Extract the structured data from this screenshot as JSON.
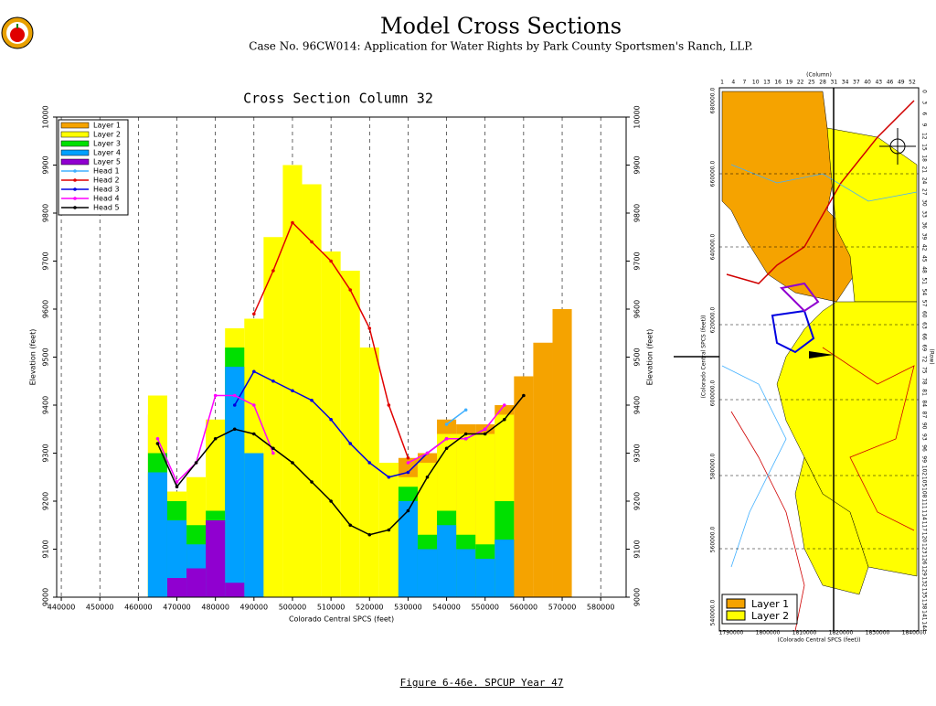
{
  "header": {
    "title": "Model Cross Sections",
    "subtitle": "Case No. 96CW014: Application for Water Rights by Park County Sportsmen's Ranch, LLP."
  },
  "chart_data": {
    "type": "cross_section",
    "title": "Cross Section Column 32",
    "x_label": "Colorado Central SPCS (feet)",
    "y_label": "Elevation (feet)",
    "x": [
      450000,
      455000,
      460000,
      465000,
      470000,
      475000,
      480000,
      485000,
      490000,
      495000,
      500000,
      505000,
      510000,
      515000,
      520000,
      525000,
      530000,
      535000,
      540000,
      545000,
      550000,
      555000,
      560000,
      565000,
      570000,
      575000
    ],
    "xlim": [
      438800,
      586600
    ],
    "ylim": [
      9000,
      10000
    ],
    "xticks": [
      440000,
      450000,
      460000,
      470000,
      480000,
      490000,
      500000,
      510000,
      520000,
      530000,
      540000,
      550000,
      560000,
      570000,
      580000
    ],
    "yticks": [
      9000,
      9100,
      9200,
      9300,
      9400,
      9500,
      9600,
      9700,
      9800,
      9900,
      10000
    ],
    "grid": true,
    "series": [
      {
        "name": "Layer 1",
        "type": "area",
        "color": "#f5a300",
        "values": [
          null,
          null,
          null,
          9380,
          null,
          null,
          null,
          null,
          null,
          null,
          null,
          null,
          null,
          null,
          null,
          null,
          9290,
          9300,
          9370,
          9360,
          9360,
          9400,
          9460,
          9530,
          9600,
          null
        ]
      },
      {
        "name": "Layer 2",
        "type": "area",
        "color": "#ffff00",
        "values": [
          null,
          null,
          null,
          9420,
          9220,
          9250,
          9370,
          9560,
          9580,
          9750,
          9900,
          9860,
          9720,
          9680,
          9520,
          9280,
          9250,
          9280,
          9340,
          9340,
          9340,
          9380,
          null,
          null,
          null,
          null
        ]
      },
      {
        "name": "Layer 3",
        "type": "area",
        "color": "#00e000",
        "values": [
          null,
          null,
          null,
          9300,
          9200,
          9150,
          9180,
          9520,
          null,
          null,
          null,
          null,
          null,
          null,
          null,
          null,
          9230,
          9130,
          9180,
          9130,
          9110,
          9200,
          null,
          null,
          null,
          null
        ]
      },
      {
        "name": "Layer 4",
        "type": "area",
        "color": "#00a0ff",
        "values": [
          null,
          null,
          null,
          9260,
          9160,
          9110,
          9130,
          9480,
          9300,
          null,
          null,
          null,
          null,
          null,
          null,
          null,
          9200,
          9100,
          9150,
          9100,
          9080,
          9120,
          null,
          null,
          null,
          null
        ]
      },
      {
        "name": "Layer 5",
        "type": "area",
        "color": "#9000d0",
        "values": [
          null,
          null,
          null,
          null,
          9040,
          9060,
          9160,
          9030,
          null,
          null,
          null,
          null,
          null,
          null,
          null,
          null,
          null,
          null,
          null,
          null,
          null,
          null,
          null,
          null,
          null,
          null
        ]
      },
      {
        "name": "Head 1",
        "type": "line",
        "color": "#40b0ff",
        "values": [
          null,
          null,
          null,
          null,
          null,
          null,
          null,
          null,
          null,
          null,
          null,
          null,
          null,
          null,
          null,
          null,
          null,
          null,
          9360,
          9390,
          null,
          null,
          null,
          null,
          null,
          null
        ]
      },
      {
        "name": "Head 2",
        "type": "line",
        "color": "#e00000",
        "values": [
          null,
          null,
          null,
          null,
          null,
          null,
          null,
          null,
          9590,
          9680,
          9780,
          9740,
          9700,
          9640,
          9560,
          9400,
          9290,
          null,
          null,
          null,
          null,
          null,
          null,
          null,
          null,
          null
        ]
      },
      {
        "name": "Head 3",
        "type": "line",
        "color": "#0000e0",
        "values": [
          null,
          null,
          null,
          null,
          null,
          null,
          null,
          9400,
          9470,
          9450,
          9430,
          9410,
          9370,
          9320,
          9280,
          9250,
          9260,
          9300,
          9330,
          9330,
          9350,
          null,
          null,
          null,
          null,
          null
        ]
      },
      {
        "name": "Head 4",
        "type": "line",
        "color": "#ff00ff",
        "values": [
          null,
          null,
          null,
          9330,
          9240,
          9280,
          9420,
          9420,
          9400,
          9300,
          null,
          null,
          null,
          null,
          null,
          null,
          9280,
          9300,
          9330,
          9330,
          9350,
          9400,
          null,
          null,
          null,
          null
        ]
      },
      {
        "name": "Head 5",
        "type": "line",
        "color": "#000000",
        "values": [
          null,
          null,
          null,
          9320,
          9230,
          9280,
          9330,
          9350,
          9340,
          9310,
          9280,
          9240,
          9200,
          9150,
          9130,
          9140,
          9180,
          9250,
          9310,
          9340,
          9340,
          9370,
          9420,
          null,
          null,
          null
        ]
      }
    ]
  },
  "map": {
    "column_label": "(Column)",
    "row_label": "(Row)",
    "x_label": "(Colorado Central SPCS (feet))",
    "y_label": "(Colorado Central SPCS (feet))",
    "columns": [
      1,
      4,
      7,
      10,
      13,
      16,
      19,
      22,
      25,
      28,
      31,
      34,
      37,
      40,
      43,
      46,
      49,
      52
    ],
    "rows": [
      0,
      3,
      6,
      9,
      12,
      15,
      18,
      21,
      24,
      27,
      30,
      33,
      36,
      39,
      42,
      45,
      48,
      51,
      54,
      57,
      60,
      63,
      66,
      69,
      72,
      75,
      78,
      81,
      84,
      87,
      90,
      93,
      96,
      99,
      102,
      105,
      108,
      111,
      114,
      117,
      120,
      123,
      126,
      129,
      132,
      135,
      138,
      141,
      144
    ],
    "xticks": [
      1790000,
      1800000,
      1810000,
      1820000,
      1830000,
      1840000
    ],
    "yticks": [
      "680000.0",
      "660000.0",
      "640000.0",
      "620000.0",
      "600000.0",
      "580000.0",
      "560000.0",
      "540000.0"
    ],
    "legend": [
      "Layer 1",
      "Layer 2"
    ]
  },
  "caption": "Figure 6-46e.  SPCUP Year 47"
}
